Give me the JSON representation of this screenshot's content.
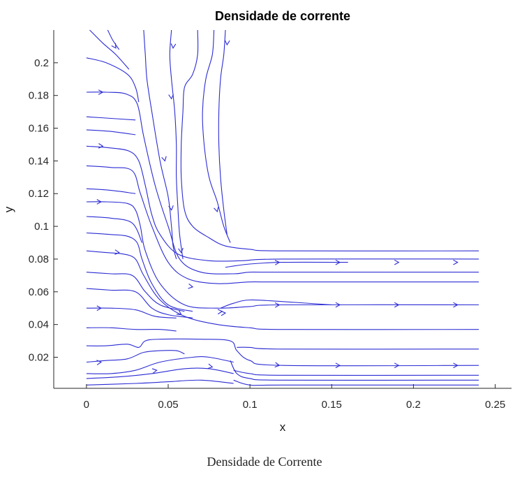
{
  "caption": "Densidade de Corrente",
  "chart_data": {
    "type": "streamline",
    "title": "Densidade de corrente",
    "xlabel": "x",
    "ylabel": "y",
    "xlim": [
      -0.02,
      0.26
    ],
    "ylim": [
      0.001,
      0.22
    ],
    "xticks": [
      0,
      0.05,
      0.1,
      0.15,
      0.2,
      0.25
    ],
    "xtick_labels": [
      "0",
      "0.05",
      "0.1",
      "0.15",
      "0.2",
      "0.25"
    ],
    "yticks": [
      0.02,
      0.04,
      0.06,
      0.08,
      0.1,
      0.12,
      0.14,
      0.16,
      0.18,
      0.2
    ],
    "ytick_labels": [
      "0.02",
      "0.04",
      "0.06",
      "0.08",
      "0.1",
      "0.12",
      "0.14",
      "0.16",
      "0.18",
      "0.2"
    ],
    "grid": false,
    "line_color": "#2b2bd4",
    "streamlines": [
      [
        [
          0,
          0.203
        ],
        [
          0.012,
          0.2
        ],
        [
          0.025,
          0.193
        ],
        [
          0.03,
          0.185
        ],
        [
          0.032,
          0.176
        ]
      ],
      [
        [
          0,
          0.182
        ],
        [
          0.012,
          0.182
        ],
        [
          0.024,
          0.181
        ],
        [
          0.031,
          0.175
        ],
        [
          0.035,
          0.155
        ],
        [
          0.042,
          0.125
        ],
        [
          0.05,
          0.1
        ],
        [
          0.057,
          0.08
        ],
        [
          0.07,
          0.072
        ],
        [
          0.09,
          0.071
        ],
        [
          0.1,
          0.072
        ],
        [
          0.12,
          0.072
        ],
        [
          0.24,
          0.072
        ]
      ],
      [
        [
          0,
          0.167
        ],
        [
          0.015,
          0.166
        ],
        [
          0.03,
          0.165
        ]
      ],
      [
        [
          0,
          0.159
        ],
        [
          0.015,
          0.158
        ],
        [
          0.03,
          0.156
        ]
      ],
      [
        [
          0,
          0.149
        ],
        [
          0.014,
          0.148
        ],
        [
          0.026,
          0.146
        ],
        [
          0.032,
          0.14
        ],
        [
          0.036,
          0.125
        ],
        [
          0.04,
          0.107
        ],
        [
          0.045,
          0.095
        ],
        [
          0.056,
          0.083
        ],
        [
          0.075,
          0.079
        ],
        [
          0.095,
          0.079
        ],
        [
          0.12,
          0.08
        ],
        [
          0.24,
          0.08
        ]
      ],
      [
        [
          0,
          0.137
        ],
        [
          0.015,
          0.136
        ],
        [
          0.028,
          0.134
        ],
        [
          0.033,
          0.12
        ],
        [
          0.04,
          0.1
        ],
        [
          0.05,
          0.078
        ],
        [
          0.062,
          0.068
        ],
        [
          0.08,
          0.065
        ],
        [
          0.1,
          0.066
        ],
        [
          0.12,
          0.066
        ],
        [
          0.24,
          0.066
        ]
      ],
      [
        [
          0,
          0.123
        ],
        [
          0.015,
          0.122
        ],
        [
          0.03,
          0.12
        ]
      ],
      [
        [
          0,
          0.115
        ],
        [
          0.012,
          0.115
        ],
        [
          0.025,
          0.114
        ],
        [
          0.03,
          0.11
        ],
        [
          0.033,
          0.1
        ],
        [
          0.036,
          0.085
        ],
        [
          0.045,
          0.065
        ],
        [
          0.06,
          0.052
        ],
        [
          0.08,
          0.05
        ],
        [
          0.1,
          0.051
        ],
        [
          0.12,
          0.052
        ],
        [
          0.24,
          0.052
        ]
      ],
      [
        [
          0,
          0.106
        ],
        [
          0.015,
          0.105
        ],
        [
          0.028,
          0.102
        ],
        [
          0.034,
          0.09
        ]
      ],
      [
        [
          0,
          0.096
        ],
        [
          0.015,
          0.095
        ],
        [
          0.025,
          0.094
        ],
        [
          0.031,
          0.09
        ],
        [
          0.034,
          0.08
        ],
        [
          0.04,
          0.065
        ],
        [
          0.05,
          0.052
        ],
        [
          0.065,
          0.048
        ]
      ],
      [
        [
          0,
          0.085
        ],
        [
          0.012,
          0.084
        ],
        [
          0.023,
          0.083
        ],
        [
          0.03,
          0.08
        ],
        [
          0.035,
          0.07
        ],
        [
          0.045,
          0.055
        ],
        [
          0.06,
          0.045
        ],
        [
          0.08,
          0.04
        ],
        [
          0.1,
          0.038
        ],
        [
          0.12,
          0.037
        ],
        [
          0.24,
          0.037
        ]
      ],
      [
        [
          0,
          0.072
        ],
        [
          0.015,
          0.071
        ],
        [
          0.028,
          0.07
        ],
        [
          0.036,
          0.06
        ],
        [
          0.045,
          0.052
        ],
        [
          0.06,
          0.048
        ]
      ],
      [
        [
          0,
          0.062
        ],
        [
          0.015,
          0.061
        ],
        [
          0.03,
          0.06
        ],
        [
          0.04,
          0.05
        ],
        [
          0.05,
          0.046
        ],
        [
          0.065,
          0.044
        ]
      ],
      [
        [
          0,
          0.05
        ],
        [
          0.015,
          0.05
        ],
        [
          0.03,
          0.049
        ],
        [
          0.042,
          0.045
        ],
        [
          0.055,
          0.044
        ]
      ],
      [
        [
          0,
          0.038
        ],
        [
          0.015,
          0.038
        ],
        [
          0.03,
          0.037
        ],
        [
          0.045,
          0.037
        ],
        [
          0.055,
          0.036
        ]
      ],
      [
        [
          0,
          0.027
        ],
        [
          0.012,
          0.027
        ],
        [
          0.025,
          0.028
        ],
        [
          0.032,
          0.026
        ],
        [
          0.036,
          0.03
        ],
        [
          0.045,
          0.031
        ],
        [
          0.07,
          0.031
        ],
        [
          0.088,
          0.03
        ],
        [
          0.092,
          0.024
        ],
        [
          0.1,
          0.018
        ],
        [
          0.12,
          0.015
        ],
        [
          0.24,
          0.015
        ]
      ],
      [
        [
          0,
          0.017
        ],
        [
          0.012,
          0.018
        ],
        [
          0.025,
          0.019
        ],
        [
          0.035,
          0.023
        ],
        [
          0.045,
          0.024
        ],
        [
          0.055,
          0.024
        ],
        [
          0.06,
          0.022
        ]
      ],
      [
        [
          0,
          0.01
        ],
        [
          0.015,
          0.01
        ],
        [
          0.03,
          0.012
        ],
        [
          0.045,
          0.017
        ],
        [
          0.065,
          0.02
        ],
        [
          0.075,
          0.02
        ],
        [
          0.09,
          0.017
        ]
      ],
      [
        [
          0,
          0.007
        ],
        [
          0.02,
          0.008
        ],
        [
          0.04,
          0.01
        ],
        [
          0.06,
          0.013
        ],
        [
          0.075,
          0.013
        ],
        [
          0.09,
          0.01
        ]
      ],
      [
        [
          0,
          0.003
        ],
        [
          0.03,
          0.004
        ],
        [
          0.05,
          0.005
        ],
        [
          0.07,
          0.006
        ],
        [
          0.09,
          0.004
        ]
      ],
      [
        [
          0.002,
          0.22
        ],
        [
          0.01,
          0.212
        ],
        [
          0.018,
          0.205
        ],
        [
          0.026,
          0.196
        ]
      ],
      [
        [
          0.013,
          0.22
        ],
        [
          0.016,
          0.214
        ],
        [
          0.02,
          0.208
        ]
      ],
      [
        [
          0.035,
          0.22
        ],
        [
          0.036,
          0.205
        ],
        [
          0.037,
          0.19
        ],
        [
          0.04,
          0.17
        ],
        [
          0.045,
          0.14
        ],
        [
          0.05,
          0.118
        ],
        [
          0.052,
          0.1
        ],
        [
          0.053,
          0.088
        ],
        [
          0.055,
          0.08
        ]
      ],
      [
        [
          0.052,
          0.22
        ],
        [
          0.051,
          0.205
        ],
        [
          0.052,
          0.19
        ],
        [
          0.054,
          0.17
        ],
        [
          0.055,
          0.15
        ],
        [
          0.055,
          0.13
        ],
        [
          0.056,
          0.11
        ],
        [
          0.057,
          0.095
        ],
        [
          0.059,
          0.08
        ]
      ],
      [
        [
          0.068,
          0.22
        ],
        [
          0.068,
          0.205
        ],
        [
          0.065,
          0.193
        ],
        [
          0.06,
          0.185
        ],
        [
          0.059,
          0.17
        ],
        [
          0.058,
          0.15
        ],
        [
          0.058,
          0.13
        ],
        [
          0.06,
          0.11
        ],
        [
          0.065,
          0.1
        ],
        [
          0.075,
          0.093
        ],
        [
          0.085,
          0.088
        ],
        [
          0.1,
          0.086
        ],
        [
          0.12,
          0.085
        ],
        [
          0.24,
          0.085
        ]
      ],
      [
        [
          0.078,
          0.22
        ],
        [
          0.077,
          0.205
        ],
        [
          0.073,
          0.19
        ],
        [
          0.071,
          0.17
        ],
        [
          0.072,
          0.15
        ],
        [
          0.075,
          0.13
        ],
        [
          0.08,
          0.115
        ],
        [
          0.084,
          0.1
        ],
        [
          0.088,
          0.09
        ]
      ],
      [
        [
          0.085,
          0.22
        ],
        [
          0.084,
          0.205
        ],
        [
          0.082,
          0.19
        ],
        [
          0.081,
          0.17
        ],
        [
          0.081,
          0.15
        ],
        [
          0.082,
          0.13
        ],
        [
          0.084,
          0.11
        ],
        [
          0.086,
          0.095
        ]
      ],
      [
        [
          0.082,
          0.05
        ],
        [
          0.09,
          0.053
        ],
        [
          0.1,
          0.055
        ],
        [
          0.12,
          0.054
        ],
        [
          0.15,
          0.052
        ]
      ],
      [
        [
          0.085,
          0.075
        ],
        [
          0.1,
          0.077
        ],
        [
          0.12,
          0.078
        ],
        [
          0.16,
          0.078
        ]
      ],
      [
        [
          0.088,
          0.018
        ],
        [
          0.092,
          0.01
        ],
        [
          0.1,
          0.007
        ],
        [
          0.12,
          0.006
        ],
        [
          0.24,
          0.006
        ]
      ],
      [
        [
          0.09,
          0.006
        ],
        [
          0.1,
          0.003
        ],
        [
          0.12,
          0.003
        ],
        [
          0.24,
          0.003
        ]
      ],
      [
        [
          0.09,
          0.012
        ],
        [
          0.1,
          0.01
        ],
        [
          0.12,
          0.009
        ],
        [
          0.24,
          0.009
        ]
      ],
      [
        [
          0.092,
          0.026
        ],
        [
          0.1,
          0.026
        ],
        [
          0.12,
          0.025
        ],
        [
          0.24,
          0.025
        ]
      ]
    ],
    "arrows": [
      [
        0.01,
        0.182
      ],
      [
        0.01,
        0.149
      ],
      [
        0.009,
        0.115
      ],
      [
        0.02,
        0.084
      ],
      [
        0.009,
        0.05
      ],
      [
        0.009,
        0.017
      ],
      [
        0.018,
        0.209
      ],
      [
        0.053,
        0.209
      ],
      [
        0.086,
        0.211
      ],
      [
        0.052,
        0.178
      ],
      [
        0.048,
        0.14
      ],
      [
        0.052,
        0.11
      ],
      [
        0.08,
        0.109
      ],
      [
        0.058,
        0.084
      ],
      [
        0.065,
        0.063
      ],
      [
        0.058,
        0.046
      ],
      [
        0.083,
        0.048
      ],
      [
        0.043,
        0.012
      ],
      [
        0.077,
        0.014
      ],
      [
        0.085,
        0.047
      ],
      [
        0.118,
        0.078
      ],
      [
        0.155,
        0.078
      ],
      [
        0.191,
        0.078
      ],
      [
        0.227,
        0.078
      ],
      [
        0.118,
        0.052
      ],
      [
        0.155,
        0.052
      ],
      [
        0.191,
        0.052
      ],
      [
        0.227,
        0.052
      ],
      [
        0.118,
        0.015
      ],
      [
        0.155,
        0.015
      ],
      [
        0.191,
        0.015
      ],
      [
        0.227,
        0.015
      ]
    ]
  }
}
